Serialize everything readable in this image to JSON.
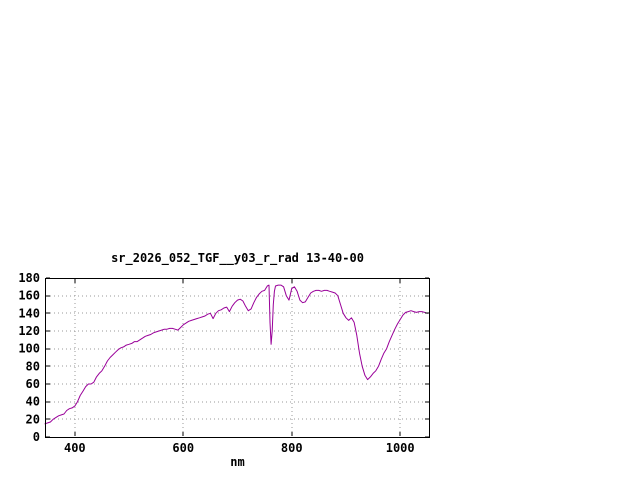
{
  "page": {
    "background_color": "#ffffff"
  },
  "chart_data": {
    "type": "line",
    "title": "sr_2026_052_TGF__y03_r_rad 13-40-00",
    "xlabel": "nm",
    "ylabel": "",
    "xlim": [
      345,
      1055
    ],
    "ylim": [
      0,
      180
    ],
    "x_ticks": [
      400,
      600,
      800,
      1000
    ],
    "y_ticks": [
      0,
      20,
      40,
      60,
      80,
      100,
      120,
      140,
      160,
      180
    ],
    "grid": true,
    "legend": "none",
    "line_color": "#990099",
    "grid_color": "#9a9a9a",
    "series": [
      {
        "name": "sr_2026_052_TGF__y03_r_rad",
        "x": [
          345,
          350,
          355,
          360,
          365,
          370,
          375,
          380,
          385,
          390,
          395,
          400,
          405,
          410,
          415,
          420,
          425,
          430,
          435,
          440,
          445,
          450,
          455,
          460,
          465,
          470,
          475,
          480,
          485,
          490,
          495,
          500,
          505,
          510,
          515,
          520,
          525,
          530,
          535,
          540,
          545,
          550,
          555,
          560,
          565,
          570,
          575,
          580,
          585,
          590,
          595,
          600,
          605,
          610,
          615,
          620,
          625,
          630,
          635,
          640,
          645,
          650,
          655,
          660,
          665,
          670,
          675,
          680,
          685,
          690,
          695,
          700,
          705,
          710,
          715,
          720,
          725,
          730,
          735,
          740,
          745,
          750,
          755,
          758,
          760,
          762,
          764,
          766,
          768,
          770,
          775,
          780,
          785,
          790,
          795,
          800,
          805,
          810,
          815,
          820,
          825,
          830,
          835,
          840,
          845,
          850,
          855,
          860,
          865,
          870,
          875,
          880,
          885,
          890,
          895,
          900,
          905,
          910,
          915,
          920,
          925,
          930,
          935,
          940,
          945,
          950,
          955,
          960,
          965,
          970,
          975,
          980,
          985,
          990,
          995,
          1000,
          1005,
          1010,
          1015,
          1020,
          1025,
          1030,
          1035,
          1040,
          1045,
          1050
        ],
        "y": [
          15,
          16,
          17,
          20,
          22,
          24,
          25,
          26,
          30,
          32,
          33,
          35,
          40,
          47,
          52,
          57,
          60,
          60,
          62,
          68,
          72,
          75,
          80,
          86,
          90,
          93,
          96,
          99,
          101,
          102,
          104,
          105,
          106,
          108,
          108,
          110,
          112,
          114,
          115,
          116,
          118,
          119,
          120,
          121,
          122,
          122,
          123,
          123,
          122,
          121,
          124,
          127,
          129,
          131,
          132,
          133,
          134,
          135,
          136,
          137,
          139,
          140,
          134,
          140,
          143,
          144,
          146,
          147,
          142,
          148,
          152,
          155,
          156,
          154,
          148,
          143,
          145,
          152,
          158,
          162,
          165,
          166,
          171,
          172,
          130,
          105,
          120,
          150,
          165,
          171,
          172,
          172,
          170,
          160,
          155,
          168,
          170,
          165,
          155,
          152,
          153,
          158,
          163,
          165,
          166,
          166,
          165,
          166,
          166,
          165,
          164,
          163,
          160,
          150,
          140,
          135,
          132,
          135,
          130,
          115,
          95,
          80,
          70,
          65,
          68,
          72,
          75,
          80,
          88,
          95,
          100,
          108,
          115,
          122,
          128,
          133,
          138,
          141,
          142,
          143,
          142,
          141,
          142,
          142,
          141,
          140
        ]
      }
    ]
  }
}
